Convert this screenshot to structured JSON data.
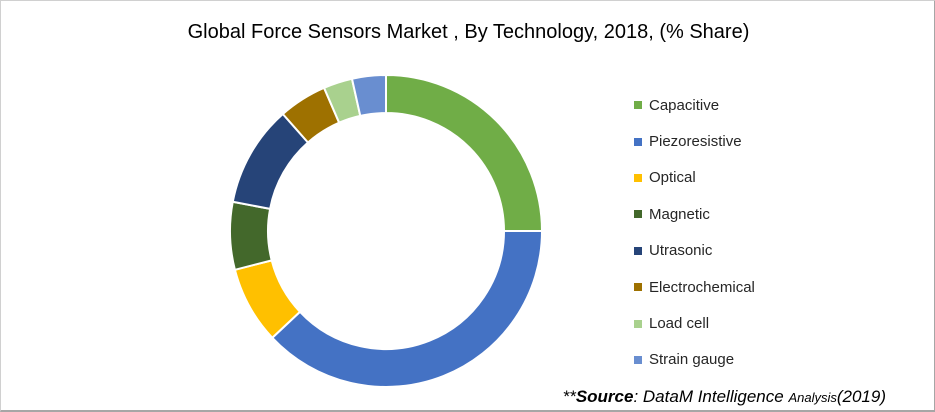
{
  "chart_data": {
    "type": "pie",
    "donut": true,
    "title": "Global Force Sensors Market , By Technology, 2018, (% Share)",
    "unit": "%",
    "legend_position": "right",
    "categories": [
      "Capacitive",
      "Piezoresistive",
      "Optical",
      "Magnetic",
      "Utrasonic",
      "Electrochemical",
      "Load cell",
      "Strain gauge"
    ],
    "values": [
      25,
      38,
      8,
      7,
      10.5,
      5,
      3,
      3.5
    ],
    "colors": [
      "#70ad47",
      "#4472c4",
      "#ffc000",
      "#43682b",
      "#264478",
      "#9e7100",
      "#a9d18e",
      "#698ed0"
    ]
  },
  "source": {
    "prefix": "**",
    "label": "Source",
    "sep": ": ",
    "name": "DataM Intelligence ",
    "suffix_small": "Analysis",
    "year": "(2019)"
  }
}
